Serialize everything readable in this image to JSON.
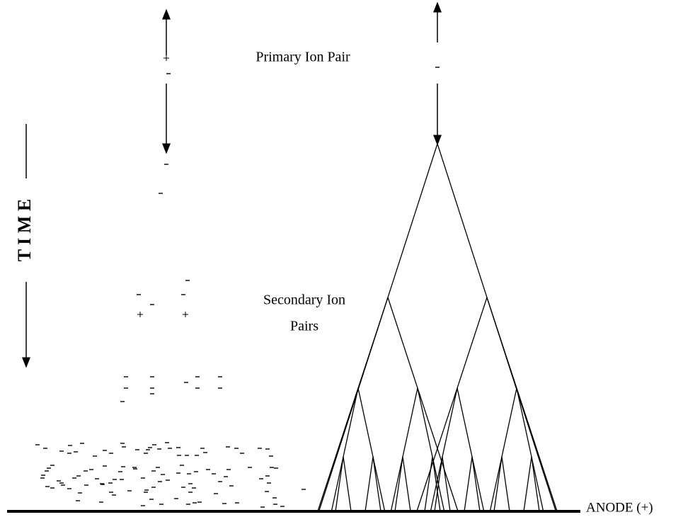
{
  "labels": {
    "primary": "Primary Ion Pair",
    "secondary": [
      "Secondary Ion",
      "Pairs"
    ],
    "time": "T I M E",
    "anode": "ANODE (+)"
  }
}
